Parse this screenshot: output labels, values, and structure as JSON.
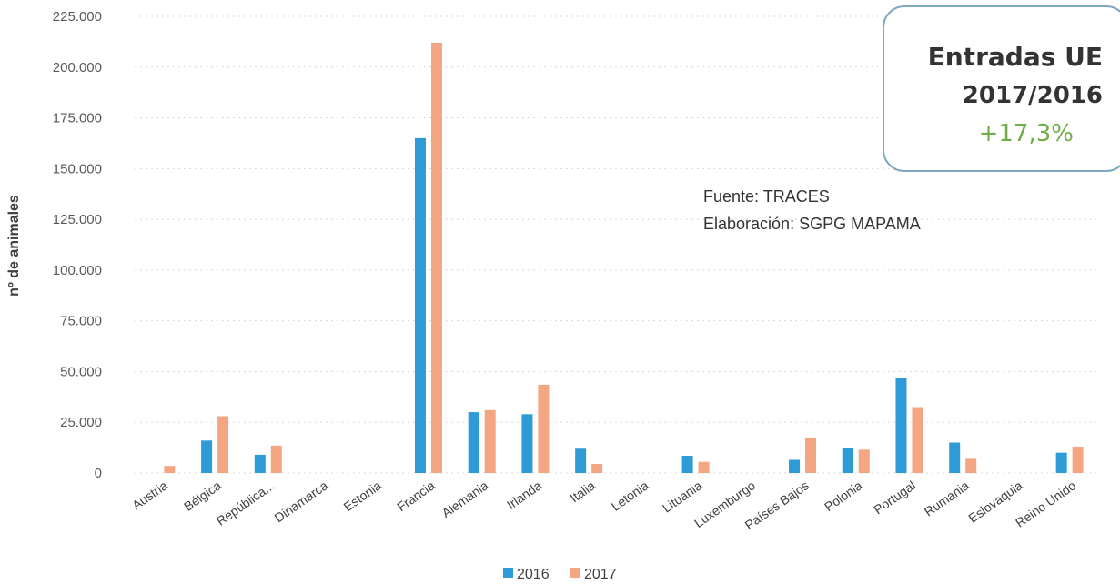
{
  "chart_data": {
    "type": "bar",
    "title": "",
    "xlabel": "",
    "ylabel": "nº de animales",
    "ylim": [
      0,
      225000
    ],
    "yticks": [
      "0",
      "25.000",
      "50.000",
      "75.000",
      "100.000",
      "125.000",
      "150.000",
      "175.000",
      "200.000",
      "225.000"
    ],
    "grid": true,
    "legend_position": "bottom",
    "categories": [
      "Austria",
      "Bélgica",
      "República...",
      "Dinamarca",
      "Estonia",
      "Francia",
      "Alemania",
      "Irlanda",
      "Italia",
      "Letonia",
      "Lituania",
      "Luxemburgo",
      "Países Bajos",
      "Polonia",
      "Portugal",
      "Rumania",
      "Eslovaquia",
      "Reino Unido"
    ],
    "series": [
      {
        "name": "2016",
        "color": "#2e9bd6",
        "values": [
          0,
          16000,
          9000,
          0,
          0,
          165000,
          30000,
          29000,
          12000,
          0,
          8500,
          0,
          6500,
          12500,
          47000,
          15000,
          0,
          10000
        ]
      },
      {
        "name": "2017",
        "color": "#f4a582",
        "values": [
          3500,
          28000,
          13500,
          0,
          0,
          212000,
          31000,
          43500,
          4500,
          0,
          5500,
          0,
          17500,
          11500,
          32500,
          7000,
          0,
          13000
        ]
      }
    ]
  },
  "source": {
    "line1": "Fuente: TRACES",
    "line2": "Elaboración: SGPG MAPAMA"
  },
  "summary_box": {
    "title": "Entradas UE",
    "period": "2017/2016",
    "change": "+17,3%",
    "change_color": "#70ad47"
  }
}
